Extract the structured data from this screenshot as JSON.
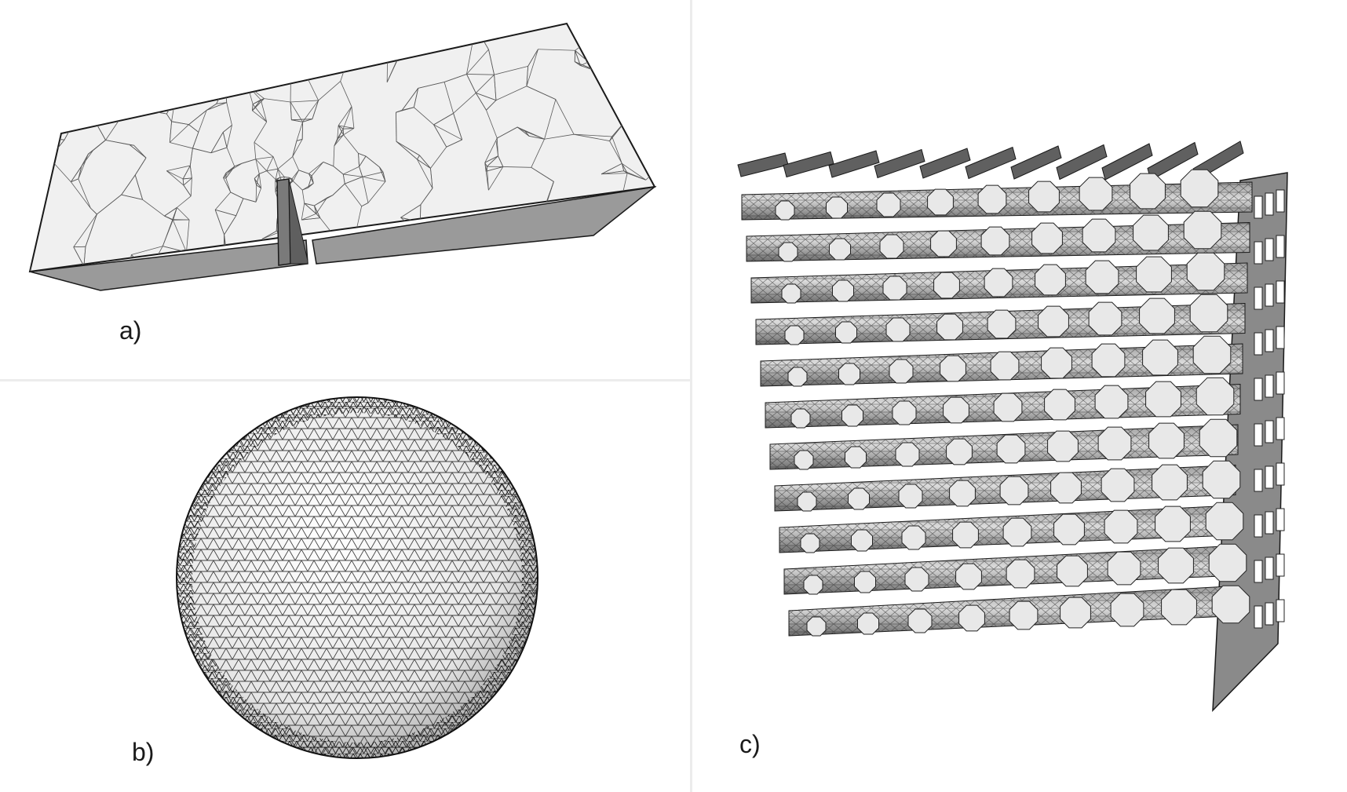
{
  "panels": {
    "a": {
      "label": "a)"
    },
    "b": {
      "label": "b)"
    },
    "c": {
      "label": "c)"
    }
  },
  "colors": {
    "face_light": "#f0f0f0",
    "face_mid": "#9a9a9a",
    "face_dark": "#707070",
    "edge": "#1a1a1a",
    "mesh_line": "#5a5a5a"
  }
}
